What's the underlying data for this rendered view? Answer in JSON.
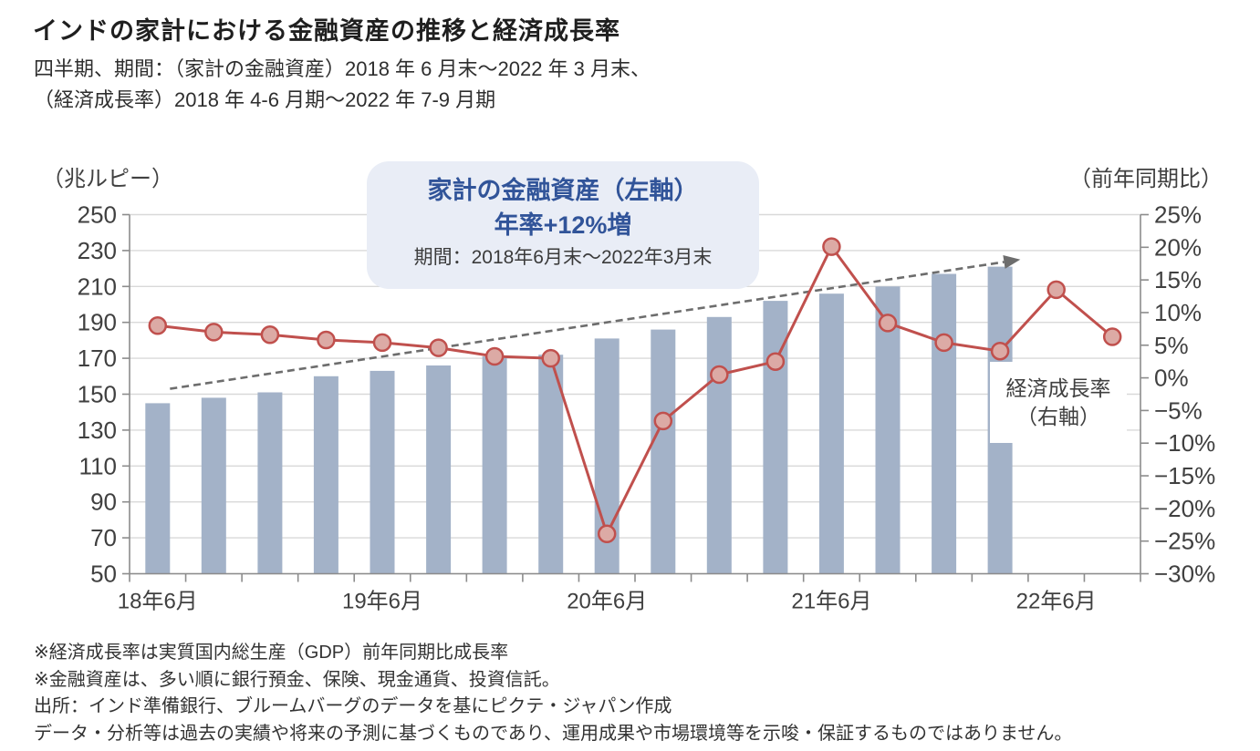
{
  "header": {
    "title": "インドの家計における金融資産の推移と経済成長率",
    "subtitle_line1": "四半期、期間：（家計の金融資産）2018 年 6 月末～2022 年 3 月末、",
    "subtitle_line2": "（経済成長率）2018 年 4-6 月期～2022 年 7-9 月期"
  },
  "chart_data": {
    "type": "combo-bar-line",
    "title": "インドの家計における金融資産の推移と経済成長率",
    "grid": true,
    "left_axis": {
      "title": "（兆ルピー）",
      "min": 50,
      "max": 250,
      "step": 20
    },
    "right_axis": {
      "title": "（前年同期比）",
      "min": -30,
      "max": 25,
      "step": 5,
      "tick_suffix": "%"
    },
    "x_axis": {
      "num_slots": 18,
      "tick_labels": [
        "18年6月",
        "19年6月",
        "20年6月",
        "21年6月",
        "22年6月"
      ],
      "label_slot_indices": [
        0,
        4,
        8,
        12,
        16
      ]
    },
    "bar_series": {
      "name": "家計の金融資産（左軸）",
      "unit": "兆ルピー",
      "axis": "left",
      "values": [
        145,
        148,
        151,
        160,
        163,
        166,
        171,
        172,
        181,
        186,
        193,
        202,
        206,
        210,
        217,
        221
      ]
    },
    "line_series": {
      "name": "経済成長率（右軸）",
      "unit": "%",
      "axis": "right",
      "values_pct": [
        8.0,
        7.0,
        6.6,
        5.8,
        5.4,
        4.6,
        3.3,
        3.0,
        -23.9,
        -6.6,
        0.5,
        2.5,
        20.1,
        8.4,
        5.4,
        4.1,
        13.5,
        6.3
      ],
      "label_line1": "経済成長率",
      "label_line2": "（右軸）"
    },
    "trend_arrow": {
      "start_slot": 0.72,
      "start_value": 153,
      "end_slot": 15.86,
      "end_value": 225
    },
    "annotation": {
      "line1": "家計の金融資産（左軸）",
      "line2": "年率+12%増",
      "line3": "期間：2018年6月末～2022年3月末"
    },
    "colors": {
      "bar": "#a3b2c8",
      "line": "#c0504d",
      "marker_fill": "#dcaaa5",
      "grid": "#d9d9d9",
      "axis": "#8c8c8c",
      "tick_text": "#404040",
      "arrow": "#6d6d6d",
      "annotation_bg": "#e9edf6",
      "annotation_text": "#315499",
      "line_label_text": "#c0504d",
      "line_label_bg": "#ffffff"
    }
  },
  "footnotes": [
    "※経済成長率は実質国内総生産（GDP）前年同期比成長率",
    "※金融資産は、多い順に銀行預金、保険、現金通貨、投資信託。",
    "出所：インド準備銀行、ブルームバーグのデータを基にピクテ・ジャパン作成",
    "データ・分析等は過去の実績や将来の予測に基づくものであり、運用成果や市場環境等を示唆・保証するものではありません。"
  ]
}
